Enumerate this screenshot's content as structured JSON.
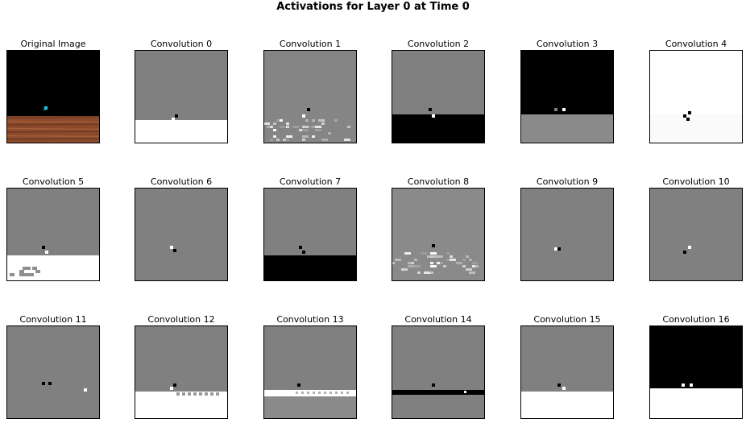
{
  "figure": {
    "title": "Activations for Layer 0 at Time 0"
  },
  "panels": [
    {
      "label": "Original Image",
      "kind": "original"
    },
    {
      "label": "Convolution 0",
      "kind": "conv"
    },
    {
      "label": "Convolution 1",
      "kind": "conv"
    },
    {
      "label": "Convolution 2",
      "kind": "conv"
    },
    {
      "label": "Convolution 3",
      "kind": "conv"
    },
    {
      "label": "Convolution 4",
      "kind": "conv"
    },
    {
      "label": "Convolution 5",
      "kind": "conv"
    },
    {
      "label": "Convolution 6",
      "kind": "conv"
    },
    {
      "label": "Convolution 7",
      "kind": "conv"
    },
    {
      "label": "Convolution 8",
      "kind": "conv"
    },
    {
      "label": "Convolution 9",
      "kind": "conv"
    },
    {
      "label": "Convolution 10",
      "kind": "conv"
    },
    {
      "label": "Convolution 11",
      "kind": "conv"
    },
    {
      "label": "Convolution 12",
      "kind": "conv"
    },
    {
      "label": "Convolution 13",
      "kind": "conv"
    },
    {
      "label": "Convolution 14",
      "kind": "conv"
    },
    {
      "label": "Convolution 15",
      "kind": "conv"
    },
    {
      "label": "Convolution 16",
      "kind": "conv"
    }
  ]
}
